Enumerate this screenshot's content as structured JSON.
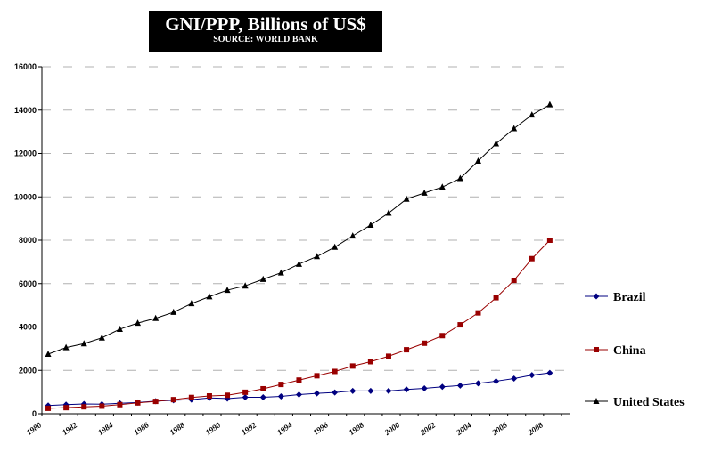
{
  "chart_data": {
    "type": "line",
    "title": "GNI/PPP, Billions of US$",
    "subtitle": "SOURCE: WORLD BANK",
    "xlabel": "",
    "ylabel": "",
    "ylim": [
      0,
      16000
    ],
    "yticks": [
      0,
      2000,
      4000,
      6000,
      8000,
      10000,
      12000,
      14000,
      16000
    ],
    "xticks": [
      1980,
      1982,
      1984,
      1986,
      1988,
      1990,
      1992,
      1994,
      1996,
      1998,
      2000,
      2002,
      2004,
      2006,
      2008
    ],
    "grid": true,
    "legend_position": "right",
    "x": [
      1980,
      1981,
      1982,
      1983,
      1984,
      1985,
      1986,
      1987,
      1988,
      1989,
      1990,
      1991,
      1992,
      1993,
      1994,
      1995,
      1996,
      1997,
      1998,
      1999,
      2000,
      2001,
      2002,
      2003,
      2004,
      2005,
      2006,
      2007,
      2008
    ],
    "series": [
      {
        "name": "Brazil",
        "color": "#000080",
        "marker": "diamond",
        "values": [
          380,
          420,
          450,
          440,
          480,
          520,
          580,
          620,
          650,
          730,
          700,
          760,
          760,
          800,
          880,
          940,
          980,
          1050,
          1050,
          1050,
          1120,
          1170,
          1240,
          1300,
          1400,
          1500,
          1620,
          1780,
          1880
        ]
      },
      {
        "name": "China",
        "color": "#990000",
        "marker": "square",
        "values": [
          250,
          280,
          320,
          350,
          420,
          500,
          570,
          650,
          750,
          820,
          850,
          990,
          1150,
          1350,
          1550,
          1750,
          1950,
          2200,
          2400,
          2650,
          2950,
          3250,
          3600,
          4100,
          4650,
          5350,
          6150,
          7150,
          8000
        ]
      },
      {
        "name": "United States",
        "color": "#000000",
        "marker": "triangle",
        "values": [
          2750,
          3050,
          3230,
          3500,
          3900,
          4180,
          4400,
          4680,
          5080,
          5400,
          5700,
          5900,
          6200,
          6500,
          6900,
          7250,
          7680,
          8200,
          8700,
          9250,
          9900,
          10180,
          10450,
          10850,
          11650,
          12450,
          13150,
          13780,
          14250
        ]
      }
    ]
  }
}
